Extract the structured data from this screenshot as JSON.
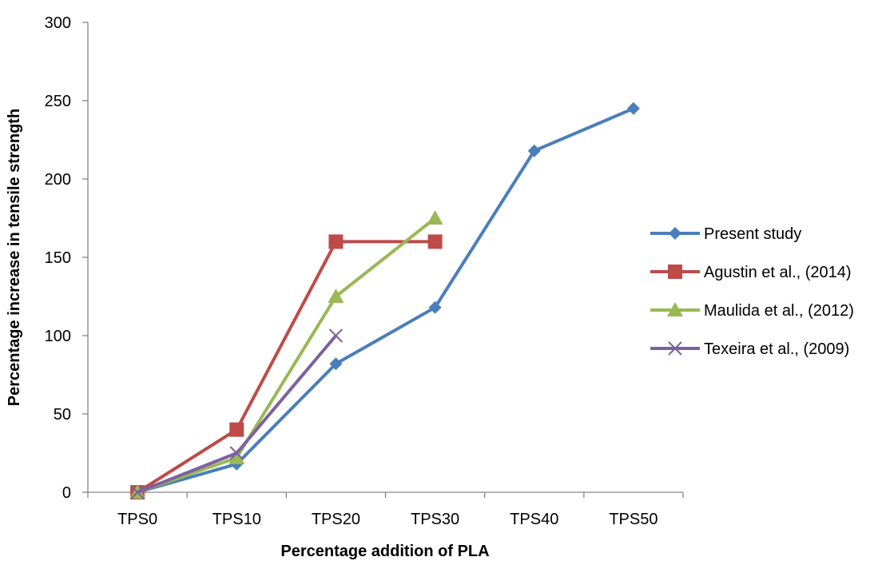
{
  "chart_data": {
    "type": "line",
    "title": "",
    "xlabel": "Percentage addition of PLA",
    "ylabel": "Percentage increase in tensile strength",
    "categories": [
      "TPS0",
      "TPS10",
      "TPS20",
      "TPS30",
      "TPS40",
      "TPS50"
    ],
    "ylim": [
      0,
      300
    ],
    "yticks": [
      0,
      50,
      100,
      150,
      200,
      250,
      300
    ],
    "grid": false,
    "legend_position": "right",
    "series": [
      {
        "name": "Present study",
        "color": "#4a7ebb",
        "marker": "diamond",
        "values": [
          0,
          18,
          82,
          118,
          218,
          245
        ]
      },
      {
        "name": "Agustin et al., (2014)",
        "color": "#be4b48",
        "marker": "square",
        "values": [
          0,
          40,
          160,
          160,
          null,
          null
        ]
      },
      {
        "name": "Maulida et al., (2012)",
        "color": "#98b954",
        "marker": "triangle",
        "values": [
          0,
          22,
          125,
          175,
          null,
          null
        ]
      },
      {
        "name": "Texeira et al., (2009)",
        "color": "#7d60a0",
        "marker": "x",
        "values": [
          0,
          25,
          100,
          null,
          null,
          null
        ]
      }
    ]
  }
}
